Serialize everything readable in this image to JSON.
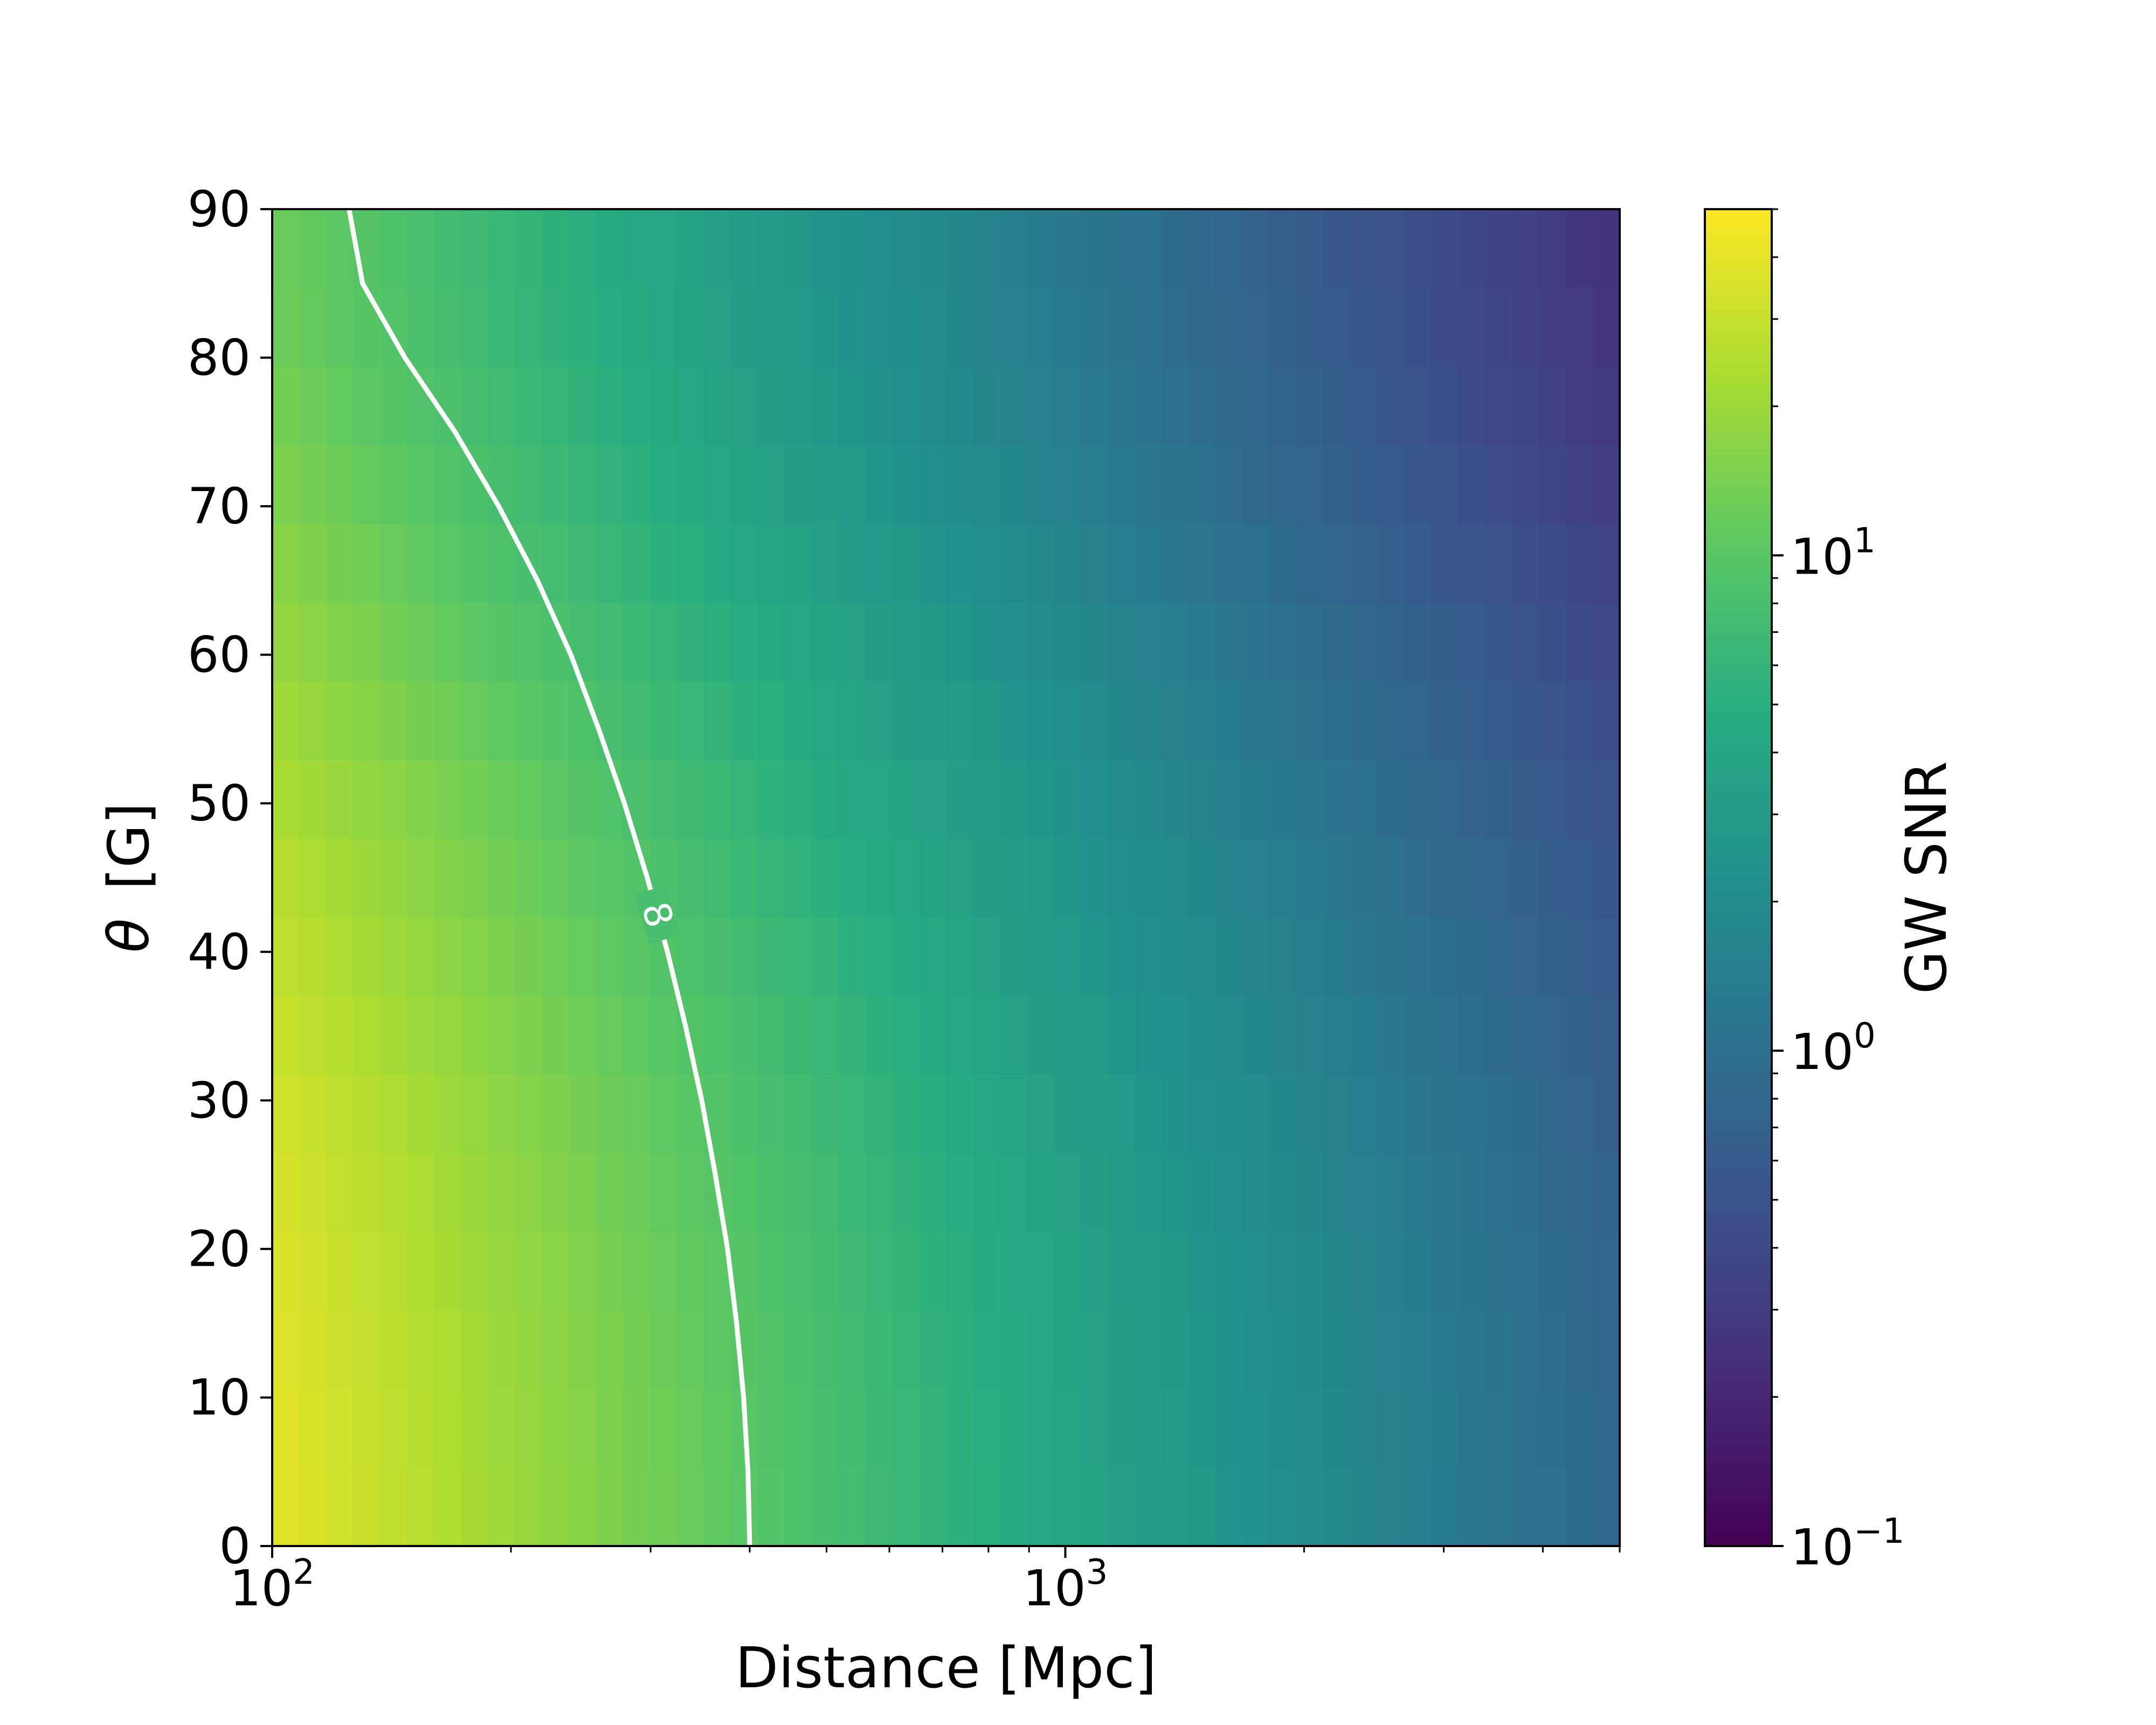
{
  "chart_data": {
    "type": "heatmap",
    "title": "",
    "xlabel": "Distance [Mpc]",
    "ylabel_symbol": "θ",
    "ylabel_unit": "[G]",
    "x_scale": "log",
    "xlim": [
      100,
      5000
    ],
    "ylim": [
      0,
      90
    ],
    "x_ticks": [
      {
        "value": 100,
        "base": "10",
        "exp": "2"
      },
      {
        "value": 1000,
        "base": "10",
        "exp": "3"
      }
    ],
    "y_ticks": [
      {
        "value": 0,
        "label": "0"
      },
      {
        "value": 10,
        "label": "10"
      },
      {
        "value": 20,
        "label": "20"
      },
      {
        "value": 30,
        "label": "30"
      },
      {
        "value": 40,
        "label": "40"
      },
      {
        "value": 50,
        "label": "50"
      },
      {
        "value": 60,
        "label": "60"
      },
      {
        "value": 70,
        "label": "70"
      },
      {
        "value": 80,
        "label": "80"
      },
      {
        "value": 90,
        "label": "90"
      }
    ],
    "grid": false,
    "colormap": "viridis",
    "colorbar": {
      "label": "GW SNR",
      "scale": "log",
      "range": [
        0.1,
        50
      ],
      "ticks": [
        {
          "value": 0.1,
          "base": "10",
          "exp": "−1"
        },
        {
          "value": 1,
          "base": "10",
          "exp": "0"
        },
        {
          "value": 10,
          "base": "10",
          "exp": "1"
        }
      ]
    },
    "snr_model": {
      "snr_at_100mpc_theta0": 40,
      "distance_scaling": "1/d",
      "angle_factor_at_90": 0.31
    },
    "grid_cells": {
      "nx": 50,
      "ny": 17
    },
    "contour": {
      "level": 8,
      "label": "8",
      "color": "#ffffff",
      "points": [
        {
          "x": 400,
          "y": 0
        },
        {
          "x": 398,
          "y": 5
        },
        {
          "x": 393,
          "y": 10
        },
        {
          "x": 385,
          "y": 15
        },
        {
          "x": 375,
          "y": 20
        },
        {
          "x": 362,
          "y": 25
        },
        {
          "x": 348,
          "y": 30
        },
        {
          "x": 332,
          "y": 35
        },
        {
          "x": 315,
          "y": 40
        },
        {
          "x": 297,
          "y": 45
        },
        {
          "x": 278,
          "y": 50
        },
        {
          "x": 258,
          "y": 55
        },
        {
          "x": 238,
          "y": 60
        },
        {
          "x": 216,
          "y": 65
        },
        {
          "x": 193,
          "y": 70
        },
        {
          "x": 170,
          "y": 75
        },
        {
          "x": 147,
          "y": 80
        },
        {
          "x": 130,
          "y": 85
        },
        {
          "x": 125,
          "y": 90
        }
      ],
      "label_at": {
        "x": 306,
        "y": 42.5
      }
    }
  }
}
